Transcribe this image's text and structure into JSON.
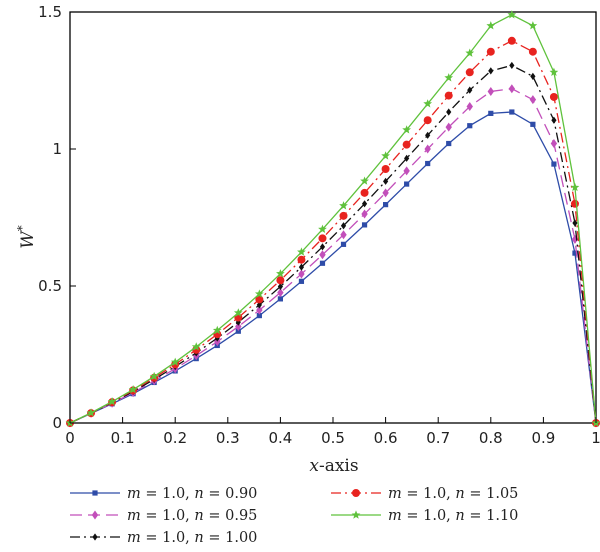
{
  "chart_data": {
    "type": "line",
    "title": "",
    "xlabel": {
      "var": "x",
      "rest": "-axis"
    },
    "ylabel": {
      "var": "W",
      "sup": "*"
    },
    "xlim": [
      0,
      1
    ],
    "ylim": [
      0,
      1.5
    ],
    "x_ticks": [
      0,
      0.1,
      0.2,
      0.3,
      0.4,
      0.5,
      0.6,
      0.7,
      0.8,
      0.9,
      1
    ],
    "x_tick_labels": [
      "0",
      "0.1",
      "0.2",
      "0.3",
      "0.4",
      "0.5",
      "0.6",
      "0.7",
      "0.8",
      "0.9",
      "1"
    ],
    "y_ticks": [
      0,
      0.5,
      1,
      1.5
    ],
    "y_tick_labels": [
      "0",
      "0.5",
      "1",
      "1.5"
    ],
    "grid": false,
    "legend_position": "bottom",
    "x": [
      0,
      0.04,
      0.08,
      0.12,
      0.16,
      0.2,
      0.24,
      0.28,
      0.32,
      0.36,
      0.4,
      0.44,
      0.48,
      0.52,
      0.56,
      0.6,
      0.64,
      0.68,
      0.72,
      0.76,
      0.8,
      0.84,
      0.88,
      0.92,
      0.96,
      1.0
    ],
    "series": [
      {
        "name": "m = 1.0, n = 0.90",
        "label_parts": {
          "m": "1.0",
          "n": "0.90"
        },
        "color": "#2e4ca8",
        "marker": "square",
        "dash": "",
        "values": [
          0,
          0.035,
          0.07,
          0.107,
          0.148,
          0.19,
          0.235,
          0.283,
          0.335,
          0.392,
          0.453,
          0.517,
          0.583,
          0.652,
          0.723,
          0.797,
          0.872,
          0.947,
          1.02,
          1.085,
          1.13,
          1.135,
          1.09,
          0.945,
          0.62,
          0
        ]
      },
      {
        "name": "m = 1.0, n = 0.95",
        "label_parts": {
          "m": "1.0",
          "n": "0.95"
        },
        "color": "#c24fba",
        "marker": "diamond",
        "dash": "12,6",
        "values": [
          0,
          0.035,
          0.072,
          0.111,
          0.154,
          0.198,
          0.246,
          0.297,
          0.352,
          0.412,
          0.476,
          0.544,
          0.614,
          0.687,
          0.763,
          0.84,
          0.92,
          1.0,
          1.08,
          1.155,
          1.21,
          1.22,
          1.18,
          1.02,
          0.67,
          0
        ]
      },
      {
        "name": "m = 1.0, n = 1.00",
        "label_parts": {
          "m": "1.0",
          "n": "1.00"
        },
        "color": "#111111",
        "marker": "diamond-small",
        "dash": "10,4,2,4",
        "values": [
          0,
          0.036,
          0.074,
          0.115,
          0.159,
          0.206,
          0.256,
          0.31,
          0.368,
          0.431,
          0.498,
          0.569,
          0.643,
          0.72,
          0.8,
          0.882,
          0.966,
          1.05,
          1.135,
          1.215,
          1.285,
          1.305,
          1.265,
          1.105,
          0.73,
          0
        ]
      },
      {
        "name": "m = 1.0, n = 1.05",
        "label_parts": {
          "m": "1.0",
          "n": "1.05"
        },
        "color": "#e8231f",
        "marker": "circle",
        "dash": "10,4,2,4",
        "values": [
          0,
          0.036,
          0.076,
          0.119,
          0.165,
          0.214,
          0.267,
          0.324,
          0.385,
          0.451,
          0.521,
          0.596,
          0.674,
          0.756,
          0.84,
          0.927,
          1.016,
          1.105,
          1.195,
          1.28,
          1.355,
          1.395,
          1.355,
          1.19,
          0.8,
          0
        ]
      },
      {
        "name": "m = 1.0, n = 1.10",
        "label_parts": {
          "m": "1.0",
          "n": "1.10"
        },
        "color": "#5fc23c",
        "marker": "star",
        "dash": "",
        "values": [
          0,
          0.037,
          0.078,
          0.122,
          0.17,
          0.222,
          0.278,
          0.338,
          0.402,
          0.471,
          0.545,
          0.624,
          0.707,
          0.793,
          0.883,
          0.975,
          1.07,
          1.165,
          1.26,
          1.35,
          1.45,
          1.49,
          1.45,
          1.28,
          0.86,
          0
        ]
      }
    ]
  }
}
